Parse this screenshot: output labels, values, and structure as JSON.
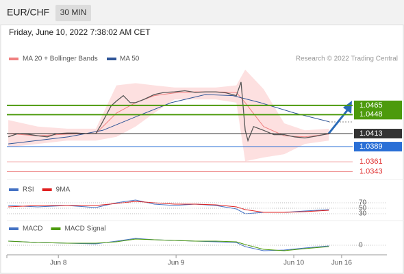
{
  "header": {
    "symbol": "EUR/CHF",
    "interval": "30 MIN",
    "timestamp": "Friday, June 10, 2022 7:38:02 AM CET",
    "source": "Research © 2022 Trading Central"
  },
  "chart_data": [
    {
      "type": "line",
      "color": "#555555",
      "x": [
        0.6,
        4.5,
        8.4,
        12.6,
        16.5,
        20.4,
        24.6,
        28.5,
        32.4,
        36.3,
        38.5,
        40.5,
        42.5,
        44.7,
        47.5,
        50.3,
        52.5,
        55.9,
        60.1,
        64.2,
        68.4,
        72.6,
        76.8,
        81.0,
        85.2,
        89.4,
        93.6,
        95.5,
        97.2,
        98.3,
        100.6,
        104.7,
        108.9,
        113.1,
        117.3,
        121.5,
        125.7,
        131.3
      ],
      "values": [
        1.0407,
        1.0413,
        1.0412,
        1.0409,
        1.0407,
        1.0413,
        1.0414,
        1.0414,
        1.0413,
        1.0413,
        1.043,
        1.0447,
        1.0464,
        1.0473,
        1.0483,
        1.047,
        1.047,
        1.0476,
        1.0485,
        1.0489,
        1.049,
        1.0492,
        1.0489,
        1.049,
        1.049,
        1.0488,
        1.0483,
        1.0508,
        1.0419,
        1.04,
        1.0426,
        1.0419,
        1.0411,
        1.0411,
        1.0407,
        1.0405,
        1.0408,
        1.0413
      ],
      "bands": {
        "name": "MA 20 + Bollinger Bands",
        "color": "#f08080",
        "band_color": "#fde0e0",
        "x": [
          0.6,
          12.6,
          24.6,
          36.3,
          44.7,
          52.5,
          60.1,
          68.4,
          76.8,
          85.2,
          93.6,
          97.2,
          104.7,
          113.1,
          121.5,
          131.3
        ],
        "values": [
          1.0413,
          1.0409,
          1.0412,
          1.0413,
          1.0451,
          1.047,
          1.0483,
          1.0488,
          1.049,
          1.049,
          1.0489,
          1.047,
          1.0426,
          1.0409,
          1.0407,
          1.0412
        ],
        "upper": [
          1.0438,
          1.0426,
          1.0422,
          1.0422,
          1.0502,
          1.0506,
          1.0502,
          1.0498,
          1.0498,
          1.0498,
          1.0502,
          1.0531,
          1.0495,
          1.0432,
          1.0419,
          1.0422
        ],
        "lower": [
          1.0388,
          1.0394,
          1.04,
          1.04,
          1.0407,
          1.0426,
          1.0451,
          1.0476,
          1.0476,
          1.0476,
          1.047,
          1.0362,
          1.0369,
          1.0375,
          1.0394,
          1.04
        ]
      },
      "series": [
        {
          "name": "MA 50",
          "color": "#2f5597",
          "x": [
            0.6,
            25.1,
            39.1,
            53.1,
            67.0,
            81.0,
            92.2,
            103.4,
            117.3,
            131.3
          ],
          "values": [
            1.0394,
            1.0407,
            1.0419,
            1.0445,
            1.047,
            1.0485,
            1.0483,
            1.047,
            1.0451,
            1.0435
          ]
        }
      ],
      "levels": [
        {
          "value": 1.0465,
          "color": "#4c9a0c",
          "boxed": true
        },
        {
          "value": 1.0448,
          "color": "#4c9a0c",
          "boxed": true
        },
        {
          "value": 1.0413,
          "color": "#333333",
          "boxed": true
        },
        {
          "value": 1.0389,
          "color": "#2a6fd6",
          "boxed": true
        },
        {
          "value": 1.0361,
          "color": "#e03030",
          "boxed": false
        },
        {
          "value": 1.0343,
          "color": "#e03030",
          "boxed": false
        }
      ],
      "ylim": [
        1.0331,
        1.0533
      ],
      "xlim": [
        0,
        141
      ],
      "xticks": [
        {
          "value": 21,
          "label": "Jun 8"
        },
        {
          "value": 69,
          "label": "Jun 9"
        },
        {
          "value": 117,
          "label": "Jun 10"
        },
        {
          "value": 136.5,
          "label": "Jun 16"
        }
      ]
    },
    {
      "type": "line",
      "x": [
        0.6,
        12.6,
        24.6,
        36.3,
        44.7,
        52.5,
        60.1,
        68.4,
        76.8,
        85.2,
        93.6,
        97.2,
        104.7,
        113.1,
        121.5,
        131.3
      ],
      "series": [
        {
          "name": "RSI",
          "color": "#4472c4",
          "values": [
            60,
            55,
            60,
            52.5,
            70,
            80,
            65,
            60,
            65,
            60,
            47.5,
            30,
            35,
            35,
            40,
            45
          ]
        },
        {
          "name": "9MA",
          "color": "#e02020",
          "values": [
            55,
            60,
            60,
            60,
            67.5,
            75,
            70,
            65,
            65,
            62.5,
            55,
            45,
            35,
            35,
            37.5,
            42.5
          ]
        }
      ],
      "ylim": [
        15,
        85
      ],
      "yticks": [
        70,
        50,
        30
      ]
    },
    {
      "type": "line",
      "x": [
        0.6,
        12.6,
        24.6,
        36.3,
        44.7,
        52.5,
        60.1,
        68.4,
        76.8,
        85.2,
        93.6,
        97.2,
        104.7,
        113.1,
        121.5,
        131.3
      ],
      "series": [
        {
          "name": "MACD",
          "color": "#4472c4",
          "values": [
            0.0006,
            0.0004,
            0.0003,
            0.0002,
            0.0006,
            0.001,
            0.0008,
            0.0007,
            0.0006,
            0.0005,
            0.0004,
            -0.0002,
            -0.0008,
            -0.0007,
            -0.0004,
            -0.0001
          ]
        },
        {
          "name": "MACD Signal",
          "color": "#4c9a0c",
          "values": [
            0.0006,
            0.0004,
            0.0003,
            0.0003,
            0.0005,
            0.0009,
            0.0008,
            0.0007,
            0.0006,
            0.0006,
            0.0005,
            0.0001,
            -0.0006,
            -0.0008,
            -0.0005,
            -0.0002
          ]
        }
      ],
      "ylim": [
        -0.0012,
        0.0013
      ],
      "yticks": [
        0
      ]
    }
  ]
}
